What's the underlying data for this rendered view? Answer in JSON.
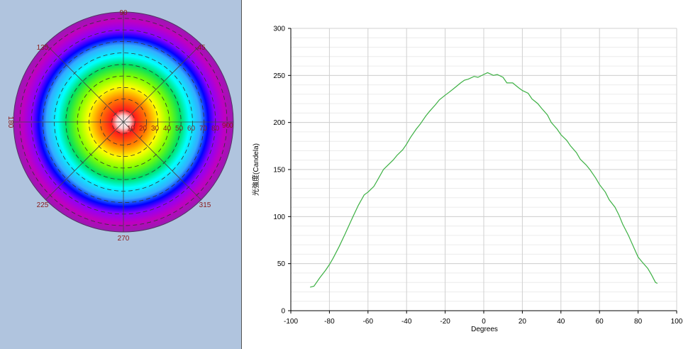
{
  "polar_view": {
    "angle_labels": [
      "90",
      "45",
      "0",
      "315",
      "270",
      "225",
      "180",
      "135"
    ],
    "radial_labels": [
      "10",
      "20",
      "30",
      "40",
      "50",
      "60",
      "70",
      "80",
      "90"
    ],
    "colors": [
      "#ffffff",
      "#ff1a1a",
      "#ff8000",
      "#ffff00",
      "#80ff00",
      "#00e060",
      "#00ffff",
      "#33aaff",
      "#0000ff",
      "#8a00ff",
      "#c000c0",
      "#9a1ab0"
    ]
  },
  "chart_data": {
    "type": "line",
    "xlabel": "Degrees",
    "ylabel": "光強度(Candela)",
    "xlim": [
      -100,
      100
    ],
    "ylim": [
      0,
      300
    ],
    "x_ticks": [
      "-100",
      "-80",
      "-60",
      "-40",
      "-20",
      "0",
      "20",
      "40",
      "60",
      "80",
      "100"
    ],
    "y_ticks": [
      "0",
      "50",
      "100",
      "150",
      "200",
      "250",
      "300"
    ],
    "grid": true,
    "series": [
      {
        "color": "#3cb043",
        "x": [
          -90,
          -88,
          -85,
          -82,
          -80,
          -78,
          -75,
          -72,
          -70,
          -68,
          -65,
          -62,
          -60,
          -57,
          -55,
          -52,
          -50,
          -47,
          -45,
          -42,
          -40,
          -38,
          -35,
          -33,
          -30,
          -28,
          -25,
          -23,
          -20,
          -18,
          -15,
          -12,
          -10,
          -8,
          -5,
          -3,
          0,
          2,
          5,
          7,
          10,
          12,
          15,
          18,
          20,
          23,
          25,
          28,
          30,
          33,
          35,
          38,
          40,
          43,
          45,
          48,
          50,
          53,
          55,
          58,
          60,
          63,
          65,
          68,
          70,
          72,
          75,
          78,
          80,
          82,
          85,
          87,
          89,
          90
        ],
        "y": [
          25,
          26,
          35,
          43,
          49,
          56,
          68,
          81,
          90,
          99,
          112,
          123,
          126,
          132,
          139,
          150,
          154,
          160,
          165,
          171,
          177,
          184,
          193,
          198,
          207,
          212,
          219,
          224,
          229,
          232,
          237,
          242,
          245,
          246,
          249,
          248,
          251,
          253,
          250,
          251,
          248,
          242,
          242,
          237,
          234,
          231,
          225,
          220,
          215,
          208,
          200,
          193,
          187,
          181,
          175,
          168,
          161,
          155,
          150,
          141,
          134,
          126,
          118,
          110,
          102,
          92,
          80,
          66,
          57,
          52,
          45,
          38,
          30,
          29
        ]
      }
    ]
  }
}
